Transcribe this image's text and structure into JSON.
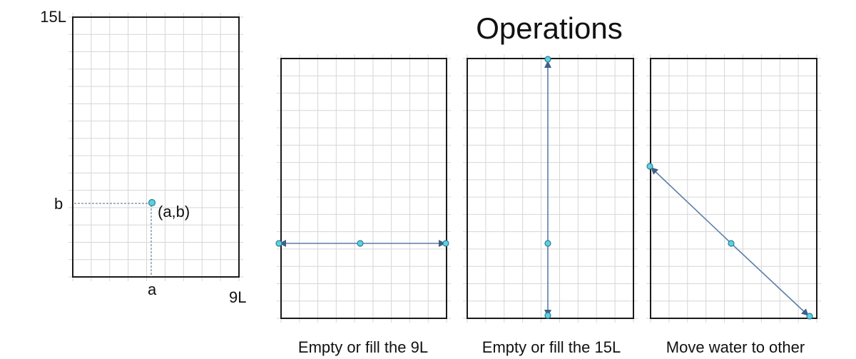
{
  "title": "Operations",
  "state_panel": {
    "max_label_15": "15L",
    "max_label_9": "9L",
    "x_axis_marker": "a",
    "y_axis_marker": "b",
    "point_label": "(a,b)"
  },
  "operation_panels": [
    {
      "caption": "Empty or fill the 9L"
    },
    {
      "caption": "Empty or fill the 15L"
    },
    {
      "caption": "Move water to other"
    }
  ],
  "colors": {
    "point_fill": "#5fd0e0",
    "arrow": "#3f5f86",
    "line": "#5a7ea8",
    "frame": "#1a1a1a",
    "grid": "#d6d6d6"
  }
}
